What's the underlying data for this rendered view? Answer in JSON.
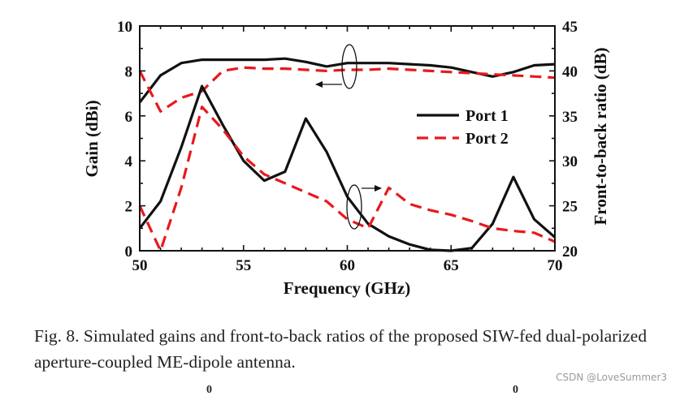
{
  "chart_data": {
    "type": "line",
    "x": [
      50,
      51,
      52,
      53,
      54,
      55,
      56,
      57,
      58,
      59,
      60,
      61,
      62,
      63,
      64,
      65,
      66,
      67,
      68,
      69,
      70
    ],
    "xlabel": "Frequency (GHz)",
    "ylabel": "Gain (dBi)",
    "ylabel_right": "Front-to-back ratio (dB)",
    "xlim": [
      50,
      70
    ],
    "ylim": [
      0,
      10
    ],
    "ylim_right": [
      20,
      45
    ],
    "xticks": [
      "50",
      "55",
      "60",
      "65",
      "70"
    ],
    "yticks": [
      "0",
      "2",
      "4",
      "6",
      "8",
      "10"
    ],
    "yticks_right": [
      "20",
      "25",
      "30",
      "35",
      "40",
      "45"
    ],
    "series": [
      {
        "name": "Port 1",
        "axis": "left",
        "style": "solid",
        "color": "#111111",
        "values": [
          6.6,
          7.8,
          8.35,
          8.5,
          8.5,
          8.5,
          8.5,
          8.55,
          8.4,
          8.2,
          8.35,
          8.35,
          8.35,
          8.3,
          8.25,
          8.15,
          7.95,
          7.75,
          7.95,
          8.25,
          8.3
        ]
      },
      {
        "name": "Port 2",
        "axis": "left",
        "style": "dashed",
        "color": "#e8191d",
        "values": [
          8.0,
          6.2,
          6.8,
          7.1,
          8.0,
          8.15,
          8.1,
          8.1,
          8.05,
          8.0,
          8.05,
          8.05,
          8.1,
          8.05,
          8.0,
          7.95,
          7.9,
          7.85,
          7.8,
          7.75,
          7.7
        ]
      },
      {
        "name": "Port 1",
        "axis": "right",
        "style": "solid",
        "color": "#111111",
        "values": [
          22.5,
          25.5,
          31.5,
          38.3,
          34,
          30,
          27.8,
          28.8,
          34.7,
          31,
          26,
          23,
          21.6,
          20.7,
          20.1,
          19.8,
          20.3,
          23,
          28.2,
          23.5,
          21.5
        ]
      },
      {
        "name": "Port 2",
        "axis": "right",
        "style": "dashed",
        "color": "#e8191d",
        "values": [
          25,
          20,
          27,
          36,
          33.5,
          30.5,
          28.5,
          27.5,
          26.5,
          25.5,
          23.5,
          22.5,
          27,
          25.2,
          24.5,
          24,
          23.3,
          22.5,
          22.2,
          22,
          21
        ]
      }
    ],
    "legend": [
      "Port 1",
      "Port 2"
    ],
    "legend_position": "right"
  },
  "caption": "Fig. 8.  Simulated gains and front-to-back ratios of the proposed SIW-fed dual-polarized aperture-coupled ME-dipole antenna.",
  "watermark": "CSDN @LoveSummer3",
  "bottom_marks": [
    "0",
    "0"
  ]
}
